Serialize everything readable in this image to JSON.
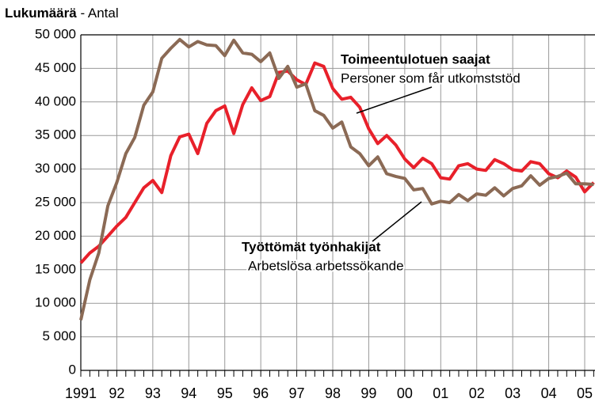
{
  "chart_data": {
    "type": "line",
    "title": "Lukumäärä",
    "subtitle": "- Antal",
    "x": [
      1991,
      1991.25,
      1991.5,
      1991.75,
      1992,
      1992.25,
      1992.5,
      1992.75,
      1993,
      1993.25,
      1993.5,
      1993.75,
      1994,
      1994.25,
      1994.5,
      1994.75,
      1995,
      1995.25,
      1995.5,
      1995.75,
      1996,
      1996.25,
      1996.5,
      1996.75,
      1997,
      1997.25,
      1997.5,
      1997.75,
      1998,
      1998.25,
      1998.5,
      1998.75,
      1999,
      1999.25,
      1999.5,
      1999.75,
      2000,
      2000.25,
      2000.5,
      2000.75,
      2001,
      2001.25,
      2001.5,
      2001.75,
      2002,
      2002.25,
      2002.5,
      2002.75,
      2003,
      2003.25,
      2003.5,
      2003.75,
      2004,
      2004.25,
      2004.5,
      2004.75,
      2005,
      2005.25
    ],
    "series": [
      {
        "name": "Toimeentulotuen saajat",
        "note": "Personer som får utkomststöd",
        "color": "#e8202a",
        "values": [
          16000,
          17500,
          18500,
          20000,
          21500,
          22800,
          25000,
          27200,
          28300,
          26500,
          32000,
          34800,
          35200,
          32300,
          36800,
          38700,
          39400,
          35300,
          39600,
          42100,
          40200,
          40800,
          44400,
          44600,
          43300,
          42600,
          45800,
          45300,
          42000,
          40400,
          40700,
          39200,
          36000,
          33800,
          35000,
          33600,
          31500,
          30200,
          31600,
          30800,
          28700,
          28500,
          30500,
          30800,
          30000,
          29800,
          31400,
          30800,
          29900,
          29700,
          31100,
          30800,
          29300,
          28700,
          29700,
          28800,
          26600,
          28000
        ]
      },
      {
        "name": "Työttömät työnhakijat",
        "note": "Arbetslösa arbetssökande",
        "color": "#8b6a55",
        "values": [
          7500,
          13500,
          17500,
          24500,
          28000,
          32300,
          34700,
          39500,
          41500,
          46500,
          48000,
          49300,
          48200,
          49000,
          48500,
          48400,
          46900,
          49200,
          47300,
          47100,
          46000,
          47300,
          43500,
          45300,
          42200,
          42700,
          38700,
          38000,
          36100,
          37000,
          33300,
          32300,
          30500,
          31800,
          29300,
          28900,
          28600,
          26900,
          27100,
          24800,
          25200,
          25000,
          26200,
          25300,
          26300,
          26100,
          27200,
          26000,
          27100,
          27500,
          29000,
          27600,
          28600,
          28900,
          29400,
          27800,
          27800,
          27700
        ]
      }
    ],
    "xlim": [
      1991,
      2005.286
    ],
    "xticks": [
      1991,
      {
        "value": 1992,
        "label": "92"
      },
      {
        "value": 1993,
        "label": "93"
      },
      {
        "value": 1994,
        "label": "94"
      },
      {
        "value": 1995,
        "label": "95"
      },
      {
        "value": 1996,
        "label": "96"
      },
      {
        "value": 1997,
        "label": "97"
      },
      {
        "value": 1998,
        "label": "98"
      },
      {
        "value": 1999,
        "label": "99"
      },
      {
        "value": 2000,
        "label": "00"
      },
      {
        "value": 2001,
        "label": "01"
      },
      {
        "value": 2002,
        "label": "02"
      },
      {
        "value": 2003,
        "label": "03"
      },
      {
        "value": 2004,
        "label": "04"
      },
      {
        "value": 2005,
        "label": "05"
      }
    ],
    "ylim": [
      0,
      50000
    ],
    "yticks": [
      0,
      {
        "value": 5000,
        "label": "5 000"
      },
      {
        "value": 10000,
        "label": "10 000"
      },
      {
        "value": 15000,
        "label": "15 000"
      },
      {
        "value": 20000,
        "label": "20 000"
      },
      {
        "value": 25000,
        "label": "25 000"
      },
      {
        "value": 30000,
        "label": "30 000"
      },
      {
        "value": 35000,
        "label": "35 000"
      },
      {
        "value": 40000,
        "label": "40 000"
      },
      {
        "value": 45000,
        "label": "45 000"
      },
      {
        "value": 50000,
        "label": "50 000"
      }
    ],
    "grid": true
  }
}
